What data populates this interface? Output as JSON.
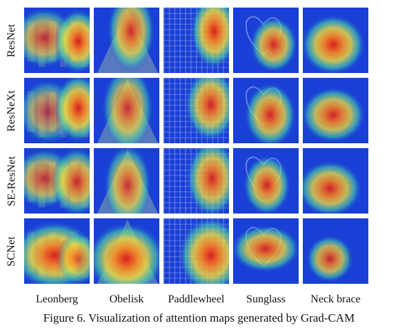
{
  "figure": {
    "caption": "Figure 6. Visualization of attention maps generated by Grad-CAM",
    "rows": [
      {
        "label": "ResNet"
      },
      {
        "label": "ResNeXt"
      },
      {
        "label": "SE-ResNet"
      },
      {
        "label": "SCNet"
      }
    ],
    "columns": [
      {
        "label": "Leonberg",
        "base": "leonberg"
      },
      {
        "label": "Obelisk",
        "base": "obelisk"
      },
      {
        "label": "Paddlewheel",
        "base": "paddlewheel"
      },
      {
        "label": "Sunglass",
        "base": "sunglass"
      },
      {
        "label": "Neck brace",
        "base": "neckbrace"
      }
    ]
  }
}
